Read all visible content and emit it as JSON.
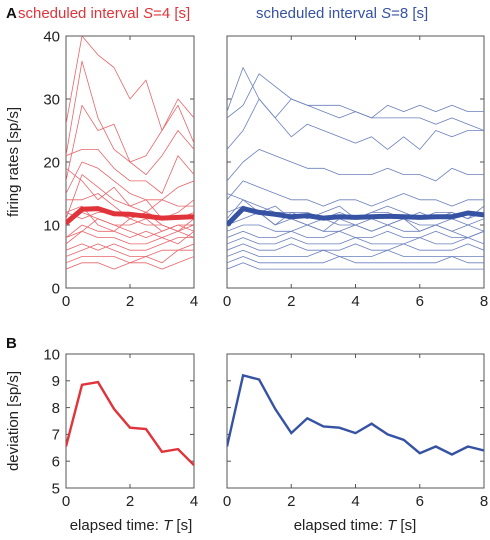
{
  "panel_letters": {
    "a": "A",
    "b": "B"
  },
  "headers": {
    "left": {
      "prefix": "scheduled interval ",
      "var": "S",
      "suffix": "=4 [s]"
    },
    "right": {
      "prefix": "scheduled interval ",
      "var": "S",
      "suffix": "=8 [s]"
    }
  },
  "ylabels": {
    "top": "firing rates [sp/s]",
    "bottom": "deviation [sp/s]"
  },
  "xlabels": {
    "left": {
      "prefix": "elapsed time: ",
      "var": "T",
      "suffix": " [s]"
    },
    "right": {
      "prefix": "elapsed time: ",
      "var": "T",
      "suffix": " [s]"
    }
  },
  "colors": {
    "red": "#e0333a",
    "red_thin": "#e8656a",
    "blue": "#3552a3",
    "blue_thin": "#6a7fbd"
  },
  "chart_data": [
    {
      "id": "A-left",
      "type": "line",
      "color": "red",
      "xlim": [
        0,
        4
      ],
      "ylim": [
        0,
        40
      ],
      "xticks": [
        0,
        2,
        4
      ],
      "yticks": [
        0,
        10,
        20,
        30,
        40
      ],
      "x": [
        0,
        0.5,
        1,
        1.5,
        2,
        2.5,
        3,
        3.5,
        4
      ],
      "mean": [
        10.3,
        12.5,
        12.6,
        11.8,
        11.7,
        11.4,
        11.1,
        11.2,
        11.3
      ],
      "traces": [
        [
          26,
          40,
          37,
          35,
          30,
          33,
          25,
          30,
          27
        ],
        [
          21,
          36,
          27,
          22,
          20,
          21,
          25,
          29,
          23
        ],
        [
          17,
          29,
          25,
          26,
          20,
          18,
          21,
          25,
          22
        ],
        [
          21,
          22,
          22,
          19,
          17,
          17,
          15,
          21,
          18
        ],
        [
          15,
          20,
          19,
          17,
          15,
          14,
          14,
          16,
          17
        ],
        [
          19,
          17,
          14,
          16,
          13,
          14,
          11,
          12,
          14
        ],
        [
          11,
          18,
          16,
          14,
          13,
          12,
          14,
          13,
          13
        ],
        [
          14,
          14,
          15,
          13,
          11,
          12,
          11,
          11,
          12
        ],
        [
          12,
          11,
          12,
          12,
          11,
          10,
          10,
          9,
          11
        ],
        [
          10,
          12,
          11,
          10,
          10,
          11,
          9,
          10,
          10
        ],
        [
          8,
          10,
          9,
          9,
          8,
          9,
          8,
          9,
          10
        ],
        [
          7,
          9,
          8,
          8,
          7,
          7,
          8,
          7,
          9
        ],
        [
          6,
          7,
          6,
          7,
          6,
          6,
          7,
          8,
          8
        ],
        [
          5,
          6,
          7,
          6,
          5,
          5,
          6,
          6,
          7
        ],
        [
          4,
          5,
          5,
          5,
          4,
          5,
          4,
          6,
          6
        ],
        [
          3,
          4,
          4,
          3,
          4,
          4,
          3,
          4,
          5
        ],
        [
          8,
          9,
          11,
          10,
          9,
          8,
          9,
          10,
          9
        ],
        [
          12,
          13,
          10,
          9,
          11,
          12,
          10,
          9,
          8
        ]
      ]
    },
    {
      "id": "A-right",
      "type": "line",
      "color": "blue",
      "xlim": [
        0,
        8
      ],
      "ylim": [
        0,
        40
      ],
      "xticks": [
        0,
        2,
        4,
        6,
        8
      ],
      "yticks": [
        0,
        10,
        20,
        30,
        40
      ],
      "x": [
        0,
        0.5,
        1,
        1.5,
        2,
        2.5,
        3,
        3.5,
        4,
        4.5,
        5,
        5.5,
        6,
        6.5,
        7,
        7.5,
        8
      ],
      "mean": [
        10.0,
        12.6,
        12.0,
        11.7,
        11.3,
        11.5,
        11.1,
        11.3,
        11.2,
        11.3,
        11.4,
        11.3,
        11.2,
        11.3,
        11.3,
        11.9,
        11.6
      ],
      "traces": [
        [
          28,
          35,
          30,
          27,
          30,
          29,
          28,
          27,
          28,
          27,
          27,
          27,
          27,
          26,
          27,
          26,
          25
        ],
        [
          27,
          29,
          34,
          32,
          30,
          29,
          29,
          29,
          28,
          27,
          29,
          28,
          29,
          28,
          29,
          28,
          28
        ],
        [
          22,
          25,
          30,
          27,
          24,
          26,
          25,
          24,
          23,
          24,
          22,
          24,
          22,
          25,
          24,
          25,
          25
        ],
        [
          17,
          20,
          22,
          21,
          20,
          19,
          19,
          18,
          18,
          18,
          19,
          18,
          18,
          17,
          19,
          18,
          18
        ],
        [
          14,
          17,
          16,
          15,
          14,
          14,
          13,
          14,
          14,
          13,
          14,
          15,
          14,
          14,
          13,
          14,
          14
        ],
        [
          11,
          14,
          13,
          12,
          12,
          12,
          11,
          12,
          11,
          12,
          12,
          11,
          12,
          11,
          12,
          11,
          12
        ],
        [
          10,
          11,
          12,
          10,
          11,
          10,
          11,
          10,
          10,
          11,
          10,
          11,
          10,
          10,
          11,
          10,
          11
        ],
        [
          9,
          10,
          10,
          9,
          9,
          10,
          9,
          9,
          10,
          9,
          10,
          9,
          9,
          10,
          9,
          10,
          9
        ],
        [
          8,
          9,
          8,
          8,
          9,
          8,
          8,
          9,
          8,
          8,
          9,
          8,
          8,
          9,
          8,
          8,
          9
        ],
        [
          7,
          8,
          7,
          7,
          8,
          7,
          7,
          7,
          8,
          7,
          7,
          7,
          8,
          7,
          7,
          8,
          7
        ],
        [
          6,
          7,
          6,
          6,
          7,
          6,
          6,
          6,
          7,
          6,
          6,
          7,
          6,
          6,
          6,
          7,
          6
        ],
        [
          5,
          6,
          5,
          5,
          5,
          5,
          6,
          5,
          5,
          5,
          6,
          5,
          5,
          5,
          5,
          5,
          5
        ],
        [
          4,
          5,
          4,
          4,
          4,
          4,
          4,
          5,
          4,
          4,
          4,
          4,
          4,
          4,
          5,
          4,
          4
        ],
        [
          3,
          4,
          3,
          3,
          3,
          3,
          3,
          3,
          3,
          3,
          3,
          3,
          3,
          3,
          3,
          3,
          3
        ],
        [
          12,
          13,
          12,
          10,
          12,
          11,
          12,
          13,
          11,
          12,
          13,
          12,
          11,
          12,
          12,
          11,
          13
        ],
        [
          15,
          14,
          12,
          13,
          11,
          10,
          9,
          11,
          10,
          9,
          10,
          11,
          9,
          10,
          9,
          8,
          9
        ]
      ]
    },
    {
      "id": "B-left",
      "type": "line",
      "color": "red",
      "xlim": [
        0,
        4
      ],
      "ylim": [
        5,
        10
      ],
      "xticks": [
        0,
        2,
        4
      ],
      "yticks": [
        5,
        6,
        7,
        8,
        9,
        10
      ],
      "x": [
        0,
        0.5,
        1,
        1.5,
        2,
        2.5,
        3,
        3.5,
        4
      ],
      "values": [
        6.55,
        8.85,
        8.95,
        7.95,
        7.25,
        7.2,
        6.35,
        6.45,
        5.85
      ]
    },
    {
      "id": "B-right",
      "type": "line",
      "color": "blue",
      "xlim": [
        0,
        8
      ],
      "ylim": [
        5,
        10
      ],
      "xticks": [
        0,
        2,
        4,
        6,
        8
      ],
      "yticks": [
        5,
        6,
        7,
        8,
        9,
        10
      ],
      "x": [
        0,
        0.5,
        1,
        1.5,
        2,
        2.5,
        3,
        3.5,
        4,
        4.5,
        5,
        5.5,
        6,
        6.5,
        7,
        7.5,
        8
      ],
      "values": [
        6.55,
        9.2,
        9.05,
        7.95,
        7.05,
        7.6,
        7.3,
        7.25,
        7.05,
        7.4,
        7.0,
        6.8,
        6.3,
        6.55,
        6.25,
        6.55,
        6.4
      ]
    }
  ]
}
